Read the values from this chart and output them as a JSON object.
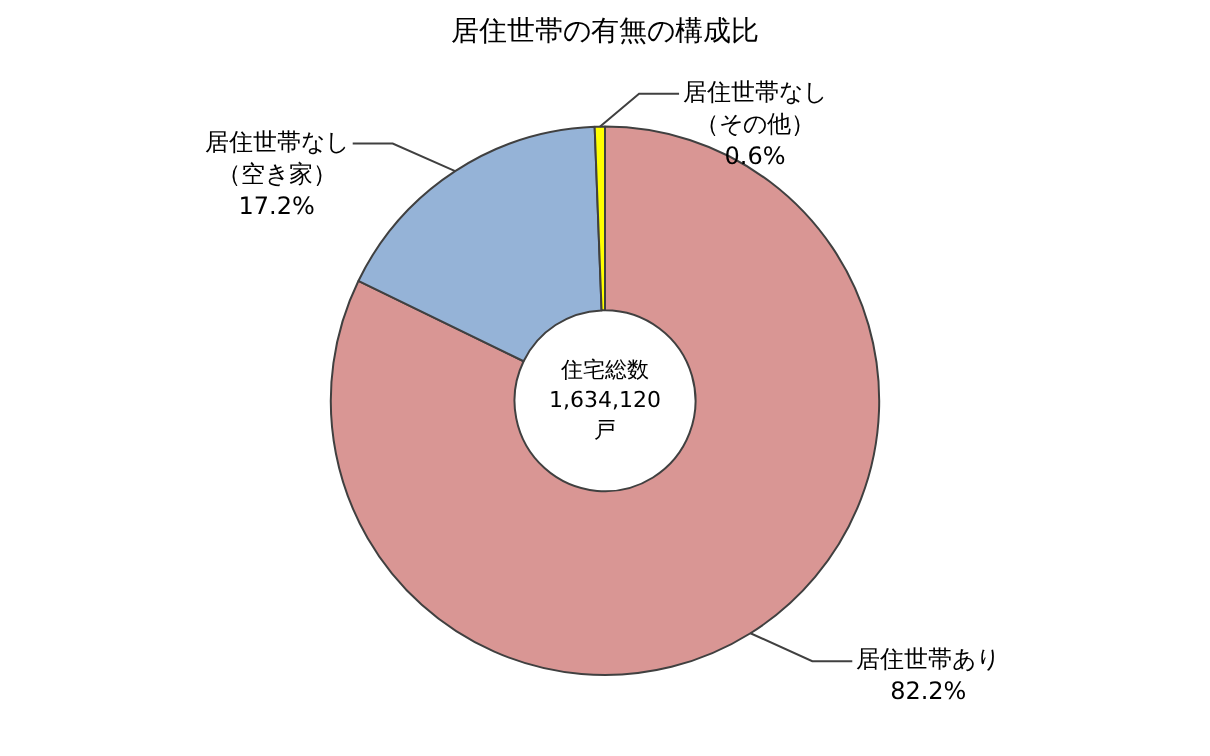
{
  "chart_data": {
    "type": "donut",
    "title": "居住世帯の有無の構成比",
    "categories": [
      "居住世帯あり",
      "居住世帯なし（空き家）",
      "居住世帯なし（その他）"
    ],
    "values": [
      82.2,
      17.2,
      0.6
    ],
    "colors": [
      "#d99694",
      "#95b3d7",
      "#ffff00"
    ],
    "value_labels": [
      "82.2%",
      "17.2%",
      "0.6%"
    ],
    "annotations": [
      "住宅総数\n1,634,120\n戸"
    ],
    "legend": false
  }
}
